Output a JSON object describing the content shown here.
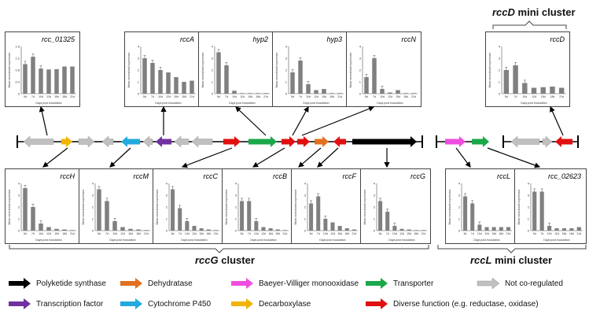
{
  "xlabel": "Days post inoculation",
  "ylabel": "Mean normalized expression",
  "colors": {
    "bar": "#808080",
    "pks": "#000000",
    "dehydratase": "#e2701f",
    "bvmo": "#f04ce0",
    "transporter": "#1aa84a",
    "notcoreg": "#c0c0c0",
    "tf": "#7030a0",
    "p450": "#22aadd",
    "decarboxylase": "#f0b400",
    "diverse": "#e01010"
  },
  "clusters": {
    "rccG": {
      "gene": "rccG",
      "suffix": " cluster"
    },
    "rccL": {
      "gene": "rccL",
      "suffix": " mini cluster"
    },
    "rccD": {
      "gene": "rccD",
      "suffix": " mini cluster"
    }
  },
  "legend": [
    {
      "label": "Polyketide synthase",
      "color": "#000000"
    },
    {
      "label": "Dehydratase",
      "color": "#e2701f"
    },
    {
      "label": "Baeyer-Villiger monooxidase",
      "color": "#f04ce0"
    },
    {
      "label": "Transporter",
      "color": "#1aa84a"
    },
    {
      "label": "Not co-regulated",
      "color": "#c0c0c0"
    },
    {
      "label": "Transcription factor",
      "color": "#7030a0"
    },
    {
      "label": "Cytochrome P450",
      "color": "#22aadd"
    },
    {
      "label": "Decarboxylase",
      "color": "#f0b400"
    },
    {
      "label": "Diverse function (e.g. reductase, oxidase)",
      "color": "#e01010"
    }
  ],
  "chart_data": [
    {
      "type": "bar",
      "title": "rcc_01325",
      "categories": [
        "5d",
        "7d",
        "10d",
        "12d",
        "15d",
        "18d",
        "21d"
      ],
      "values": [
        1.0,
        1.25,
        0.85,
        0.82,
        0.83,
        0.92,
        0.92
      ],
      "ylim": [
        0,
        1.6
      ]
    },
    {
      "type": "bar",
      "title": "rccA",
      "categories": [
        "5d",
        "7d",
        "10d",
        "12d",
        "15d",
        "18d",
        "21d"
      ],
      "values": [
        3.0,
        2.6,
        2.0,
        1.8,
        1.4,
        1.0,
        1.1
      ],
      "ylim": [
        0,
        4
      ]
    },
    {
      "type": "bar",
      "title": "hyp2",
      "categories": [
        "5d",
        "7d",
        "10d",
        "12d",
        "15d",
        "18d",
        "21d"
      ],
      "values": [
        3.5,
        2.4,
        0.25,
        0.05,
        0.05,
        0.05,
        0.05
      ],
      "ylim": [
        0,
        4
      ]
    },
    {
      "type": "bar",
      "title": "hyp3",
      "categories": [
        "5d",
        "7d",
        "10d",
        "12d",
        "15d",
        "18d",
        "21d"
      ],
      "values": [
        1.8,
        2.8,
        0.8,
        0.3,
        0.4,
        0.05,
        0.05
      ],
      "ylim": [
        0,
        4
      ]
    },
    {
      "type": "bar",
      "title": "rccN",
      "categories": [
        "5d",
        "7d",
        "10d",
        "12d",
        "15d",
        "18d",
        "21d"
      ],
      "values": [
        1.4,
        3.0,
        0.4,
        0.1,
        0.3,
        0.05,
        0.05
      ],
      "ylim": [
        0,
        4
      ]
    },
    {
      "type": "bar",
      "title": "rccD",
      "categories": [
        "5d",
        "7d",
        "10d",
        "12d",
        "15d",
        "18d",
        "21d"
      ],
      "values": [
        2.0,
        2.4,
        0.9,
        0.5,
        0.55,
        0.6,
        0.5
      ],
      "ylim": [
        0,
        4
      ]
    },
    {
      "type": "bar",
      "title": "rccH",
      "categories": [
        "5d",
        "7d",
        "10d",
        "12d",
        "15d",
        "18d",
        "21d"
      ],
      "values": [
        3.6,
        2.0,
        0.6,
        0.3,
        0.15,
        0.1,
        0.05
      ],
      "ylim": [
        0,
        4
      ]
    },
    {
      "type": "bar",
      "title": "rccM",
      "categories": [
        "5d",
        "7d",
        "10d",
        "12d",
        "15d",
        "18d",
        "21d"
      ],
      "values": [
        3.5,
        2.5,
        0.8,
        0.3,
        0.15,
        0.1,
        0.05
      ],
      "ylim": [
        0,
        4
      ]
    },
    {
      "type": "bar",
      "title": "rccC",
      "categories": [
        "5d",
        "7d",
        "10d",
        "12d",
        "15d",
        "18d",
        "21d"
      ],
      "values": [
        3.5,
        1.9,
        0.8,
        0.4,
        0.2,
        0.1,
        0.05
      ],
      "ylim": [
        0,
        4
      ]
    },
    {
      "type": "bar",
      "title": "rccB",
      "categories": [
        "5d",
        "7d",
        "10d",
        "12d",
        "15d",
        "18d",
        "21d"
      ],
      "values": [
        2.5,
        2.5,
        0.8,
        0.3,
        0.2,
        0.1,
        0.05
      ],
      "ylim": [
        0,
        4
      ]
    },
    {
      "type": "bar",
      "title": "rccF",
      "categories": [
        "5d",
        "7d",
        "10d",
        "12d",
        "15d",
        "18d",
        "21d"
      ],
      "values": [
        2.3,
        2.9,
        1.0,
        0.7,
        0.4,
        0.2,
        0.1
      ],
      "ylim": [
        0,
        4
      ]
    },
    {
      "type": "bar",
      "title": "rccG",
      "categories": [
        "5d",
        "7d",
        "10d",
        "12d",
        "15d",
        "18d",
        "21d"
      ],
      "values": [
        2.5,
        1.6,
        0.4,
        0.15,
        0.1,
        0.05,
        0.05
      ],
      "ylim": [
        0,
        4
      ]
    },
    {
      "type": "bar",
      "title": "rccL",
      "categories": [
        "5d",
        "7d",
        "10d",
        "12d",
        "15d",
        "18d",
        "21d"
      ],
      "values": [
        2.9,
        2.3,
        0.5,
        0.3,
        0.3,
        0.3,
        0.3
      ],
      "ylim": [
        0,
        4
      ]
    },
    {
      "type": "bar",
      "title": "rcc_02623",
      "categories": [
        "5d",
        "7d",
        "10d",
        "12d",
        "15d",
        "18d",
        "21d"
      ],
      "values": [
        3.3,
        3.3,
        0.4,
        0.2,
        0.2,
        0.2,
        0.3
      ],
      "ylim": [
        0,
        4
      ]
    }
  ]
}
